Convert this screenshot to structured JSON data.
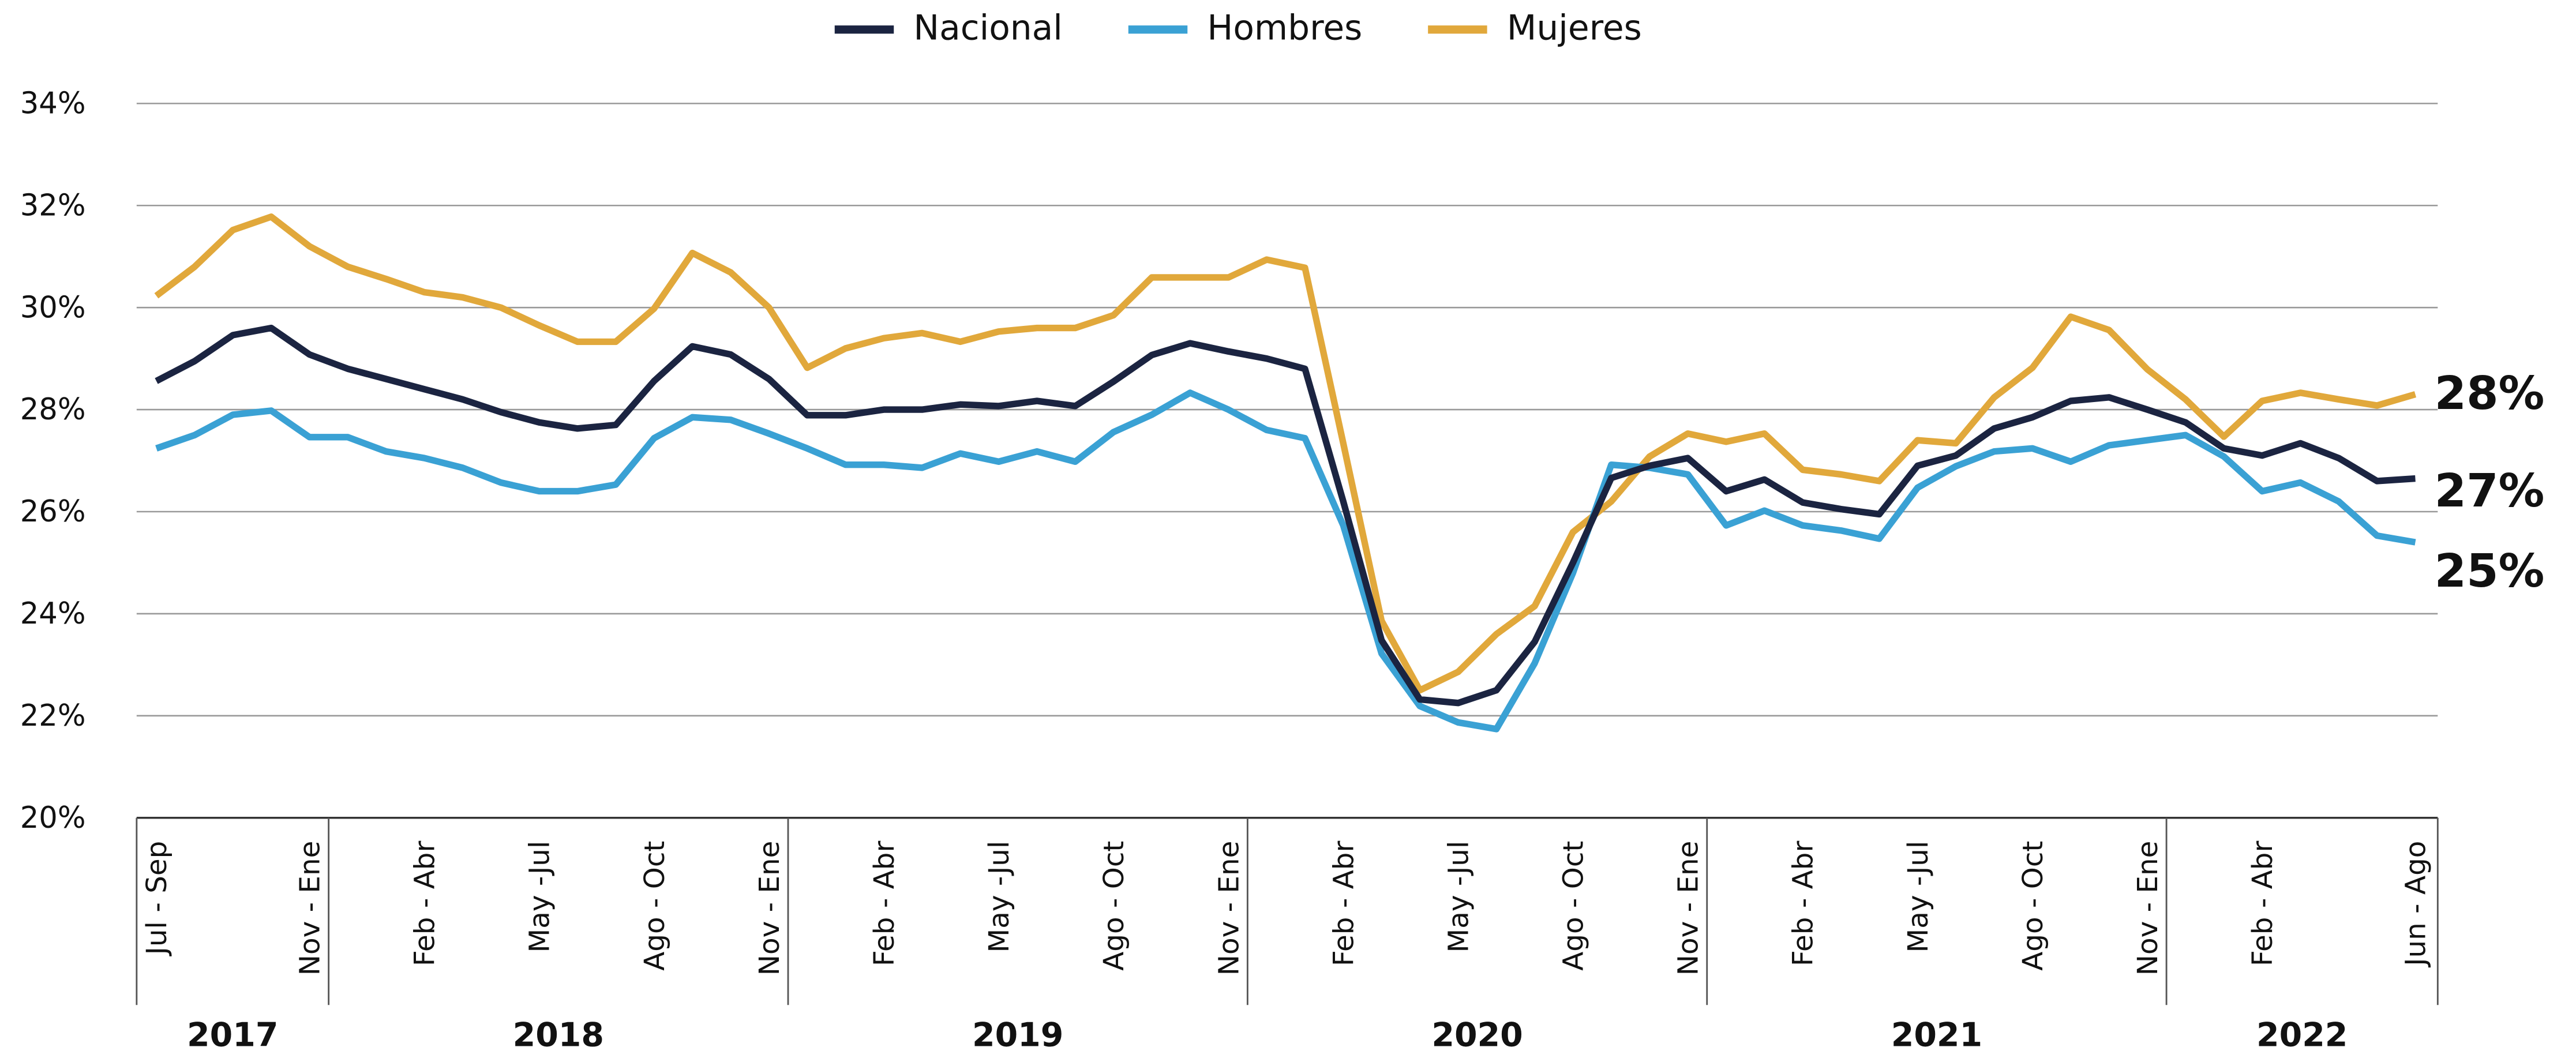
{
  "chart_data": {
    "type": "line",
    "categories": [
      "Jul - Sep",
      null,
      null,
      null,
      "Nov - Ene",
      null,
      null,
      "Feb - Abr",
      null,
      null,
      "May -Jul",
      null,
      null,
      "Ago - Oct",
      null,
      null,
      "Nov - Ene",
      null,
      null,
      "Feb - Abr",
      null,
      null,
      "May -Jul",
      null,
      null,
      "Ago - Oct",
      null,
      null,
      "Nov - Ene",
      null,
      null,
      "Feb - Abr",
      null,
      null,
      "May -Jul",
      null,
      null,
      "Ago - Oct",
      null,
      null,
      "Nov - Ene",
      null,
      null,
      "Feb - Abr",
      null,
      null,
      "May -Jul",
      null,
      null,
      "Ago - Oct",
      null,
      null,
      "Nov - Ene",
      null,
      null,
      "Feb - Abr",
      null,
      null,
      null,
      "Jun - Ago"
    ],
    "x_groups": [
      {
        "label": "2017",
        "count": 5
      },
      {
        "label": "2018",
        "count": 12
      },
      {
        "label": "2019",
        "count": 12
      },
      {
        "label": "2020",
        "count": 12
      },
      {
        "label": "2021",
        "count": 12
      },
      {
        "label": "2022",
        "count": 7
      }
    ],
    "series": [
      {
        "name": "Nacional",
        "color": "#1b2441",
        "end_label": "27%",
        "values": [
          28.56,
          28.95,
          29.46,
          29.6,
          29.08,
          28.8,
          28.6,
          28.4,
          28.2,
          27.95,
          27.75,
          27.63,
          27.7,
          28.56,
          29.24,
          29.08,
          28.6,
          27.89,
          27.89,
          28.0,
          28.0,
          28.1,
          28.07,
          28.17,
          28.07,
          28.55,
          29.07,
          29.3,
          29.14,
          29.0,
          28.8,
          26.2,
          23.48,
          22.32,
          22.25,
          22.5,
          23.45,
          25.0,
          26.66,
          26.9,
          27.05,
          26.4,
          26.63,
          26.18,
          26.05,
          25.95,
          26.9,
          27.1,
          27.63,
          27.85,
          28.17,
          28.24,
          28.0,
          27.75,
          27.24,
          27.1,
          27.34,
          27.05,
          26.6,
          26.65
        ]
      },
      {
        "name": "Hombres",
        "color": "#3aa1d4",
        "end_label": "25%",
        "values": [
          27.24,
          27.5,
          27.9,
          27.98,
          27.46,
          27.46,
          27.18,
          27.05,
          26.86,
          26.57,
          26.4,
          26.4,
          26.53,
          27.44,
          27.85,
          27.8,
          27.53,
          27.24,
          26.92,
          26.92,
          26.86,
          27.14,
          26.98,
          27.18,
          26.98,
          27.56,
          27.9,
          28.33,
          28.0,
          27.6,
          27.44,
          25.73,
          23.22,
          22.19,
          21.87,
          21.74,
          23.03,
          24.8,
          26.92,
          26.86,
          26.73,
          25.73,
          26.02,
          25.73,
          25.63,
          25.47,
          26.47,
          26.89,
          27.18,
          27.24,
          26.98,
          27.3,
          27.4,
          27.5,
          27.08,
          26.4,
          26.57,
          26.2,
          25.53,
          25.4
        ]
      },
      {
        "name": "Mujeres",
        "color": "#e1a83b",
        "end_label": "28%",
        "values": [
          30.23,
          30.8,
          31.52,
          31.78,
          31.2,
          30.8,
          30.56,
          30.3,
          30.2,
          30.0,
          29.65,
          29.33,
          29.33,
          29.98,
          31.07,
          30.69,
          30.0,
          28.82,
          29.2,
          29.4,
          29.5,
          29.33,
          29.53,
          29.6,
          29.6,
          29.85,
          30.59,
          30.59,
          30.59,
          30.94,
          30.78,
          27.34,
          23.86,
          22.5,
          22.86,
          23.6,
          24.15,
          25.6,
          26.2,
          27.08,
          27.53,
          27.37,
          27.53,
          26.82,
          26.73,
          26.6,
          27.4,
          27.34,
          28.24,
          28.82,
          29.82,
          29.56,
          28.79,
          28.2,
          27.47,
          28.17,
          28.33,
          28.2,
          28.08,
          28.3
        ]
      }
    ],
    "ylim": [
      20,
      34
    ],
    "yticks": [
      {
        "value": 20,
        "label": "20%"
      },
      {
        "value": 22,
        "label": "22%"
      },
      {
        "value": 24,
        "label": "24%"
      },
      {
        "value": 26,
        "label": "26%"
      },
      {
        "value": 28,
        "label": "28%"
      },
      {
        "value": 30,
        "label": "30%"
      },
      {
        "value": 32,
        "label": "32%"
      },
      {
        "value": 34,
        "label": "34%"
      }
    ],
    "grid": true,
    "legend": "top"
  }
}
